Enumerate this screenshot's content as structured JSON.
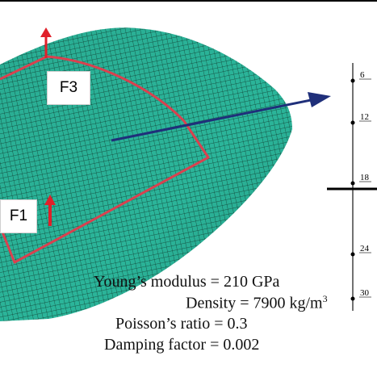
{
  "force_labels": {
    "f3": "F3",
    "f1": "F1"
  },
  "node_numbers": [
    "6",
    "12",
    "18",
    "24",
    "30"
  ],
  "properties": {
    "youngs_modulus": "Young’s modulus = 210 GPa",
    "density_prefix": "Density = 7900 kg/m",
    "density_exponent": "3",
    "poissons_ratio": "Poisson’s ratio = 0.3",
    "damping_factor": "Damping factor = 0.002"
  },
  "colors": {
    "mesh_fill": "#2bb59a",
    "mesh_lines": "#0f3a2e",
    "force_path": "#d9414f",
    "force_arrow": "#e0202a",
    "pointer_arrow": "#1f2f7a"
  }
}
